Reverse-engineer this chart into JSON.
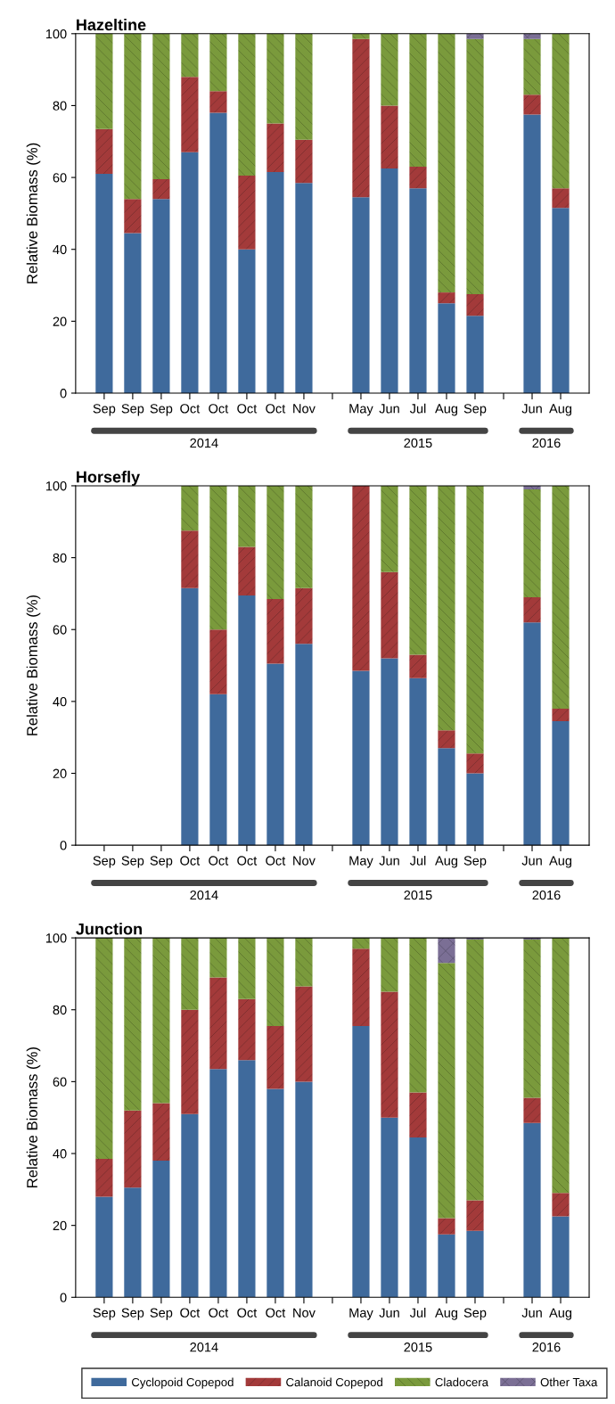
{
  "chart_data": [
    {
      "type": "bar",
      "stacked": true,
      "title": "Hazeltine",
      "ylabel": "Relative Biomass (%)",
      "categories": [
        "Sep",
        "Sep",
        "Sep",
        "Oct",
        "Oct",
        "Oct",
        "Oct",
        "Nov",
        null,
        "May",
        "Jun",
        "Jul",
        "Aug",
        "Sep",
        null,
        "Jun",
        "Aug"
      ],
      "series": [
        {
          "color": "#3f6a9c",
          "values": [
            61,
            44.5,
            54,
            67,
            78,
            40,
            61.5,
            58.5,
            null,
            54.5,
            62.5,
            57,
            25,
            21.5,
            null,
            77.5,
            51.5
          ]
        },
        {
          "color": "#a33a3a",
          "values": [
            12.5,
            9.5,
            5.5,
            21,
            6,
            20.5,
            13.5,
            12,
            null,
            44,
            17.5,
            6,
            3,
            6,
            null,
            5.5,
            5.5
          ]
        },
        {
          "color": "#7a9a3c",
          "values": [
            26.5,
            46,
            40.5,
            12,
            16,
            39.5,
            25,
            29.5,
            null,
            1.5,
            20,
            37,
            72,
            71,
            null,
            15.5,
            43
          ]
        },
        {
          "color": "#7b6f95",
          "values": [
            null,
            null,
            null,
            null,
            null,
            null,
            null,
            null,
            null,
            null,
            null,
            null,
            null,
            1.5,
            null,
            1.5,
            null
          ]
        }
      ],
      "ylim": [
        0,
        100
      ],
      "yticks": [
        0,
        20,
        40,
        60,
        80,
        100
      ],
      "annotations": [
        "2014",
        "2015",
        "2016"
      ]
    },
    {
      "type": "bar",
      "stacked": true,
      "title": "Horsefly",
      "ylabel": "Relative Biomass (%)",
      "categories": [
        "Sep",
        "Sep",
        "Sep",
        "Oct",
        "Oct",
        "Oct",
        "Oct",
        "Nov",
        null,
        "May",
        "Jun",
        "Jul",
        "Aug",
        "Sep",
        null,
        "Jun",
        "Aug"
      ],
      "series": [
        {
          "color": "#3f6a9c",
          "values": [
            null,
            null,
            null,
            71.5,
            42,
            69.5,
            50.5,
            56,
            null,
            48.5,
            52,
            46.5,
            27,
            20,
            null,
            62,
            34.5
          ]
        },
        {
          "color": "#a33a3a",
          "values": [
            null,
            null,
            null,
            16,
            18,
            13.5,
            18,
            15.5,
            null,
            51.5,
            24,
            6.5,
            5,
            5.5,
            null,
            7,
            3.5
          ]
        },
        {
          "color": "#7a9a3c",
          "values": [
            null,
            null,
            null,
            12.5,
            40,
            17,
            31.5,
            28.5,
            null,
            null,
            24,
            47,
            68,
            74.5,
            null,
            30,
            62
          ]
        },
        {
          "color": "#7b6f95",
          "values": [
            null,
            null,
            null,
            null,
            null,
            null,
            null,
            null,
            null,
            null,
            null,
            null,
            null,
            null,
            null,
            1,
            null
          ]
        }
      ],
      "ylim": [
        0,
        100
      ],
      "yticks": [
        0,
        20,
        40,
        60,
        80,
        100
      ],
      "annotations": [
        "2014",
        "2015",
        "2016"
      ]
    },
    {
      "type": "bar",
      "stacked": true,
      "title": "Junction",
      "ylabel": "Relative Biomass (%)",
      "categories": [
        "Sep",
        "Sep",
        "Sep",
        "Oct",
        "Oct",
        "Oct",
        "Oct",
        "Nov",
        null,
        "May",
        "Jun",
        "Jul",
        "Aug",
        "Sep",
        null,
        "Jun",
        "Aug"
      ],
      "series": [
        {
          "name": "Cyclopoid Copepod",
          "color": "#3f6a9c",
          "values": [
            28,
            30.5,
            38,
            51,
            63.5,
            66,
            58,
            60,
            null,
            75.5,
            50,
            44.5,
            17.5,
            18.5,
            null,
            48.5,
            22.5
          ]
        },
        {
          "name": "Calanoid Copepod",
          "color": "#a33a3a",
          "values": [
            10.5,
            21.5,
            16,
            29,
            25.5,
            17,
            17.5,
            26.5,
            null,
            21.5,
            35,
            12.5,
            4.5,
            8.5,
            null,
            7,
            6.5
          ]
        },
        {
          "name": "Cladocera",
          "color": "#7a9a3c",
          "values": [
            61.5,
            48,
            46,
            20,
            11,
            17,
            24.5,
            13.5,
            null,
            3,
            15,
            43,
            71,
            72.5,
            null,
            44,
            71
          ]
        },
        {
          "name": "Other Taxa",
          "color": "#7b6f95",
          "values": [
            null,
            null,
            null,
            null,
            null,
            null,
            null,
            null,
            null,
            null,
            null,
            null,
            7,
            0.5,
            null,
            0.5,
            null
          ]
        }
      ],
      "ylim": [
        0,
        100
      ],
      "yticks": [
        0,
        20,
        40,
        60,
        80,
        100
      ],
      "annotations": [
        "2014",
        "2015",
        "2016"
      ],
      "legend": "bottom"
    }
  ]
}
